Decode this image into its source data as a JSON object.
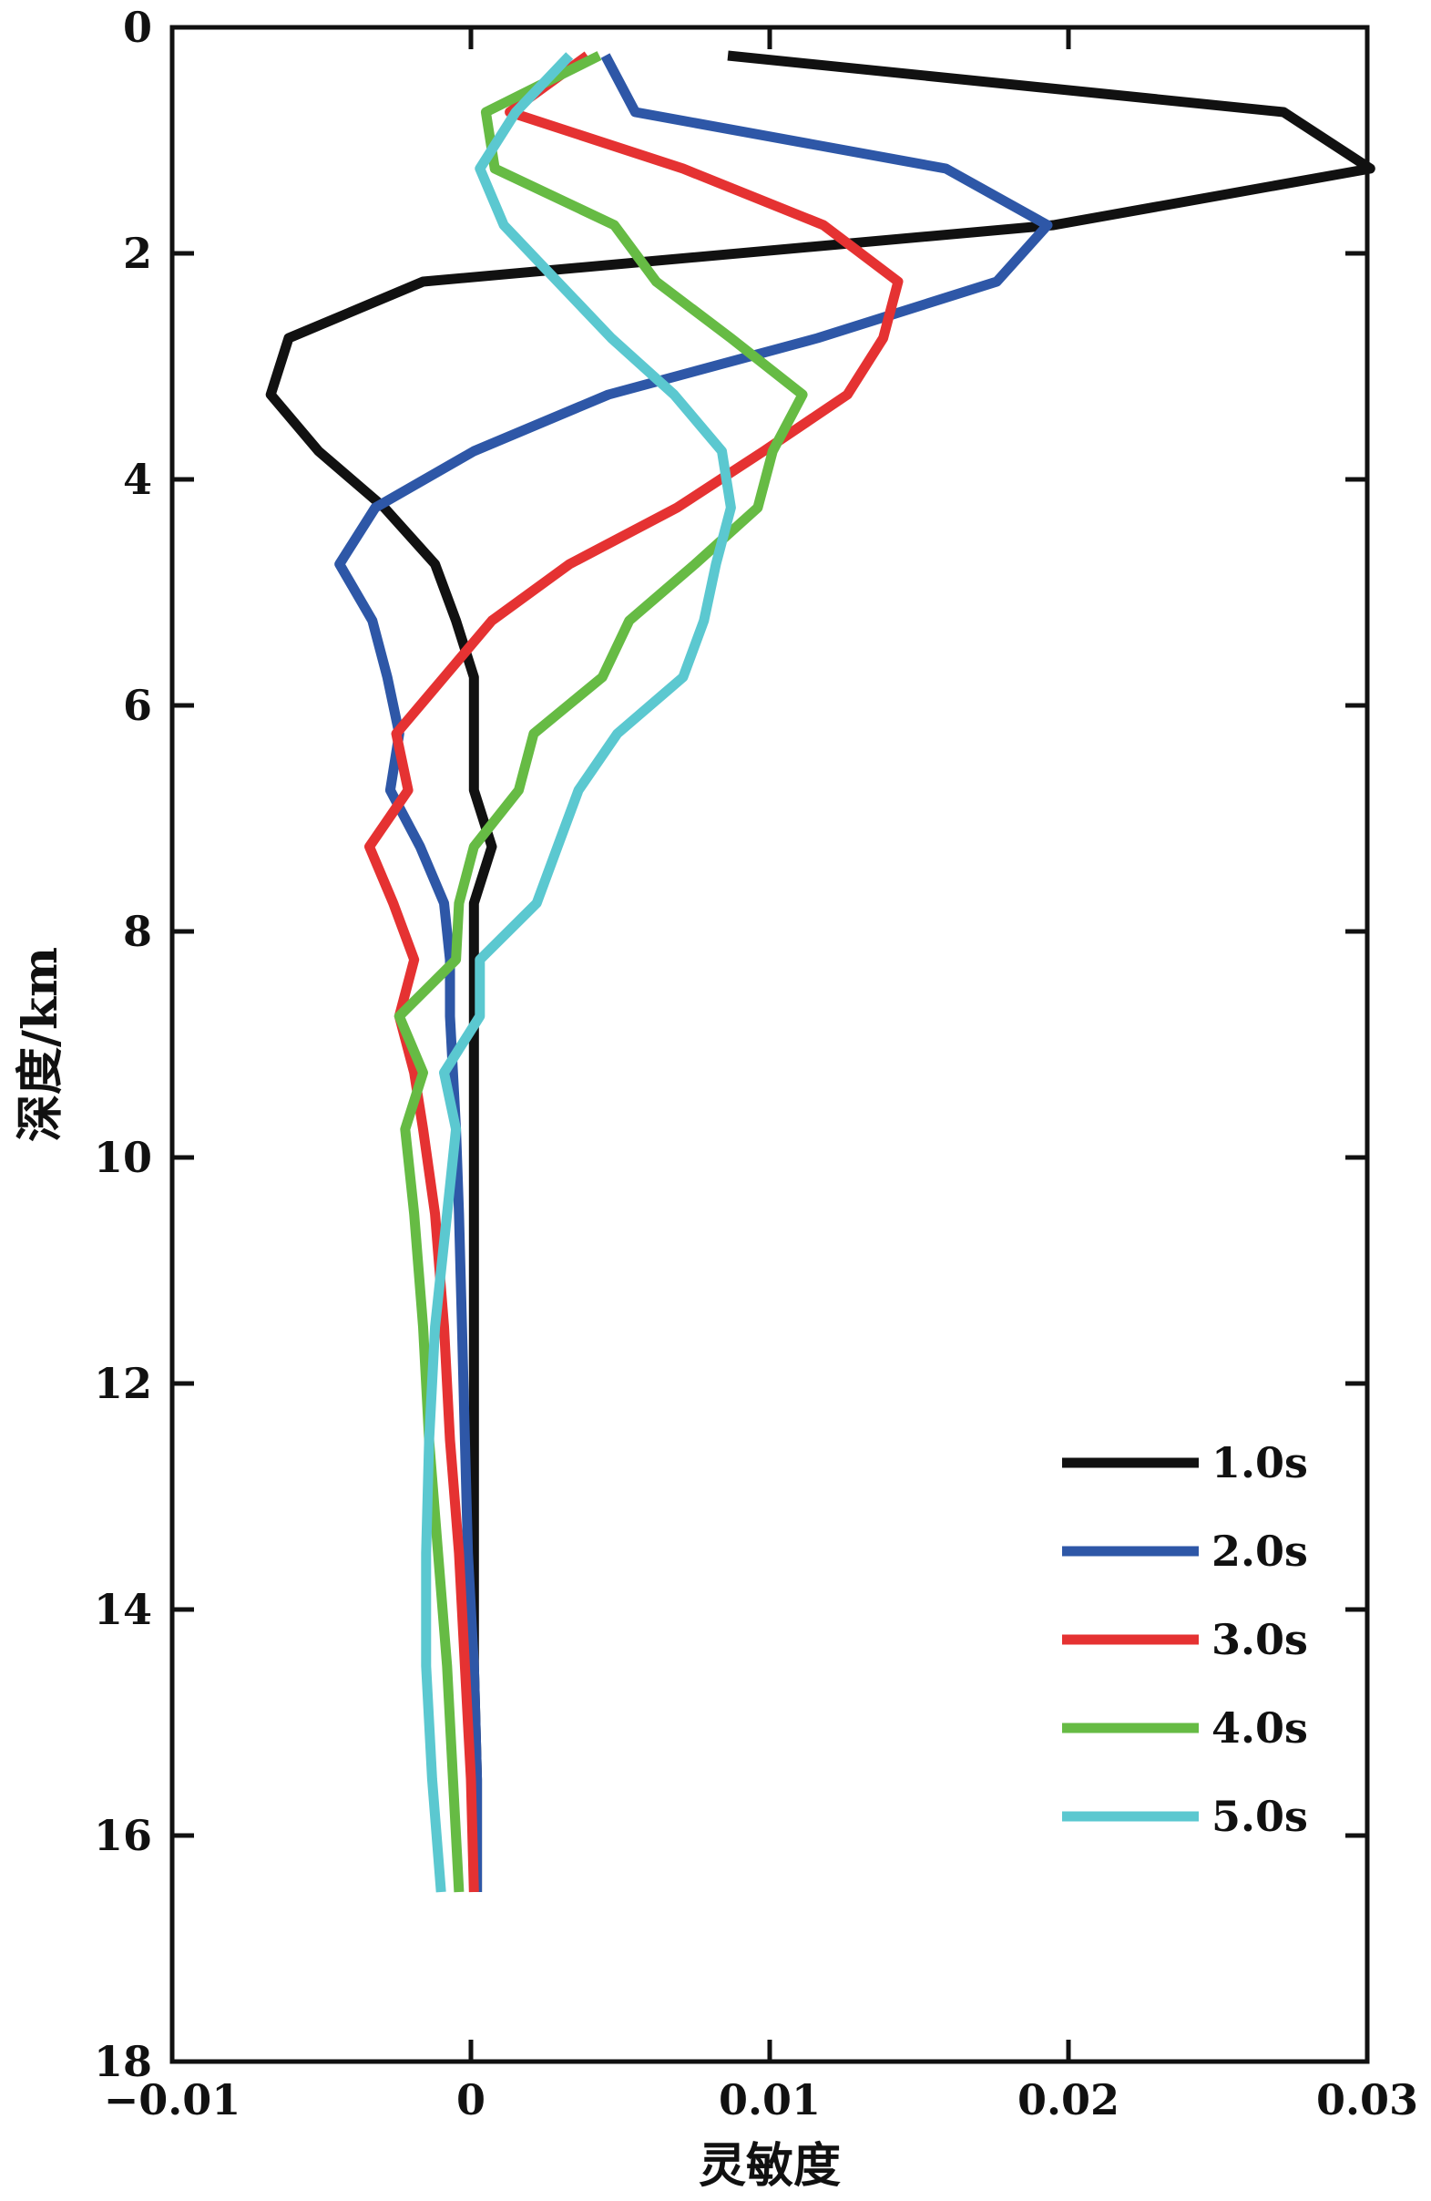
{
  "chart_data": {
    "type": "line",
    "title": "",
    "xlabel": "灵敏度",
    "ylabel": "深度/km",
    "xlim": [
      -0.01,
      0.03
    ],
    "ylim": [
      0,
      18
    ],
    "y_inverted": true,
    "grid": false,
    "legend_position": "bottom-right",
    "x_ticks": [
      -0.01,
      0,
      0.01,
      0.02,
      0.03
    ],
    "x_tick_labels": [
      "−0.01",
      "0",
      "0.01",
      "0.02",
      "0.03"
    ],
    "y_ticks": [
      0,
      2,
      4,
      6,
      8,
      10,
      12,
      14,
      16,
      18
    ],
    "y_tick_labels": [
      "0",
      "2",
      "4",
      "6",
      "8",
      "10",
      "12",
      "14",
      "16",
      "18"
    ],
    "series": [
      {
        "name": "1.0s",
        "color": "#111111",
        "points": [
          [
            0.0086,
            0.25
          ],
          [
            0.0272,
            0.75
          ],
          [
            0.0301,
            1.25
          ],
          [
            0.0195,
            1.75
          ],
          [
            -0.0016,
            2.25
          ],
          [
            -0.0061,
            2.75
          ],
          [
            -0.0067,
            3.25
          ],
          [
            -0.0051,
            3.75
          ],
          [
            -0.0029,
            4.25
          ],
          [
            -0.0012,
            4.75
          ],
          [
            -0.0005,
            5.25
          ],
          [
            0.0001,
            5.75
          ],
          [
            0.0001,
            6.25
          ],
          [
            0.0001,
            6.75
          ],
          [
            0.0007,
            7.25
          ],
          [
            0.0001,
            7.75
          ],
          [
            0.0001,
            8.25
          ],
          [
            0.0001,
            8.75
          ],
          [
            0.0001,
            9.25
          ],
          [
            0.0001,
            9.75
          ],
          [
            0.0001,
            10.5
          ],
          [
            0.0001,
            11.5
          ],
          [
            0.0001,
            12.5
          ],
          [
            0.0001,
            13.5
          ],
          [
            0.0001,
            14.5
          ],
          [
            0.0002,
            15.5
          ],
          [
            0.0002,
            16.5
          ]
        ]
      },
      {
        "name": "2.0s",
        "color": "#2e57a7",
        "points": [
          [
            0.0045,
            0.25
          ],
          [
            0.0055,
            0.75
          ],
          [
            0.0159,
            1.25
          ],
          [
            0.0193,
            1.75
          ],
          [
            0.0176,
            2.25
          ],
          [
            0.0116,
            2.75
          ],
          [
            0.0046,
            3.25
          ],
          [
            0.0001,
            3.75
          ],
          [
            -0.0032,
            4.25
          ],
          [
            -0.0044,
            4.75
          ],
          [
            -0.0033,
            5.25
          ],
          [
            -0.0028,
            5.75
          ],
          [
            -0.0024,
            6.25
          ],
          [
            -0.0027,
            6.75
          ],
          [
            -0.0017,
            7.25
          ],
          [
            -0.0009,
            7.75
          ],
          [
            -0.0007,
            8.25
          ],
          [
            -0.0007,
            8.75
          ],
          [
            -0.0006,
            9.25
          ],
          [
            -0.0005,
            9.75
          ],
          [
            -0.0004,
            10.5
          ],
          [
            -0.0003,
            11.5
          ],
          [
            -0.0002,
            12.5
          ],
          [
            -0.0001,
            13.5
          ],
          [
            0.0001,
            14.5
          ],
          [
            0.0002,
            15.5
          ],
          [
            0.0002,
            16.5
          ]
        ]
      },
      {
        "name": "3.0s",
        "color": "#e53232",
        "points": [
          [
            0.0039,
            0.25
          ],
          [
            0.0013,
            0.75
          ],
          [
            0.0071,
            1.25
          ],
          [
            0.0118,
            1.75
          ],
          [
            0.0143,
            2.25
          ],
          [
            0.0138,
            2.75
          ],
          [
            0.0126,
            3.25
          ],
          [
            0.0098,
            3.75
          ],
          [
            0.0069,
            4.25
          ],
          [
            0.0033,
            4.75
          ],
          [
            0.0007,
            5.25
          ],
          [
            -0.0009,
            5.75
          ],
          [
            -0.0025,
            6.25
          ],
          [
            -0.0021,
            6.75
          ],
          [
            -0.0034,
            7.25
          ],
          [
            -0.0026,
            7.75
          ],
          [
            -0.0019,
            8.25
          ],
          [
            -0.0024,
            8.75
          ],
          [
            -0.0019,
            9.25
          ],
          [
            -0.0016,
            9.75
          ],
          [
            -0.0012,
            10.5
          ],
          [
            -0.0009,
            11.5
          ],
          [
            -0.0007,
            12.5
          ],
          [
            -0.0004,
            13.5
          ],
          [
            -0.0002,
            14.5
          ],
          [
            0,
            15.5
          ],
          [
            0.0001,
            16.5
          ]
        ]
      },
      {
        "name": "4.0s",
        "color": "#66bb44",
        "points": [
          [
            0.0043,
            0.25
          ],
          [
            0.0005,
            0.75
          ],
          [
            0.0008,
            1.25
          ],
          [
            0.0048,
            1.75
          ],
          [
            0.0062,
            2.25
          ],
          [
            0.0087,
            2.75
          ],
          [
            0.0111,
            3.25
          ],
          [
            0.0101,
            3.75
          ],
          [
            0.0096,
            4.25
          ],
          [
            0.0075,
            4.75
          ],
          [
            0.0053,
            5.25
          ],
          [
            0.0044,
            5.75
          ],
          [
            0.0021,
            6.25
          ],
          [
            0.0016,
            6.75
          ],
          [
            0.0001,
            7.25
          ],
          [
            -0.0004,
            7.75
          ],
          [
            -0.0005,
            8.25
          ],
          [
            -0.0024,
            8.75
          ],
          [
            -0.0016,
            9.25
          ],
          [
            -0.0022,
            9.75
          ],
          [
            -0.0019,
            10.5
          ],
          [
            -0.0016,
            11.5
          ],
          [
            -0.0014,
            12.5
          ],
          [
            -0.0011,
            13.5
          ],
          [
            -0.0008,
            14.5
          ],
          [
            -0.0006,
            15.5
          ],
          [
            -0.0004,
            16.5
          ]
        ]
      },
      {
        "name": "5.0s",
        "color": "#5bc8d0",
        "points": [
          [
            0.0033,
            0.25
          ],
          [
            0.0015,
            0.75
          ],
          [
            0.0003,
            1.25
          ],
          [
            0.0011,
            1.75
          ],
          [
            0.0029,
            2.25
          ],
          [
            0.0047,
            2.75
          ],
          [
            0.0068,
            3.25
          ],
          [
            0.0084,
            3.75
          ],
          [
            0.0087,
            4.25
          ],
          [
            0.0082,
            4.75
          ],
          [
            0.0078,
            5.25
          ],
          [
            0.0071,
            5.75
          ],
          [
            0.0049,
            6.25
          ],
          [
            0.0036,
            6.75
          ],
          [
            0.0029,
            7.25
          ],
          [
            0.0022,
            7.75
          ],
          [
            0.0003,
            8.25
          ],
          [
            0.0003,
            8.75
          ],
          [
            -0.0009,
            9.25
          ],
          [
            -0.0005,
            9.75
          ],
          [
            -0.0008,
            10.5
          ],
          [
            -0.0012,
            11.5
          ],
          [
            -0.0014,
            12.5
          ],
          [
            -0.0015,
            13.5
          ],
          [
            -0.0015,
            14.5
          ],
          [
            -0.0013,
            15.5
          ],
          [
            -0.001,
            16.5
          ]
        ]
      }
    ]
  }
}
